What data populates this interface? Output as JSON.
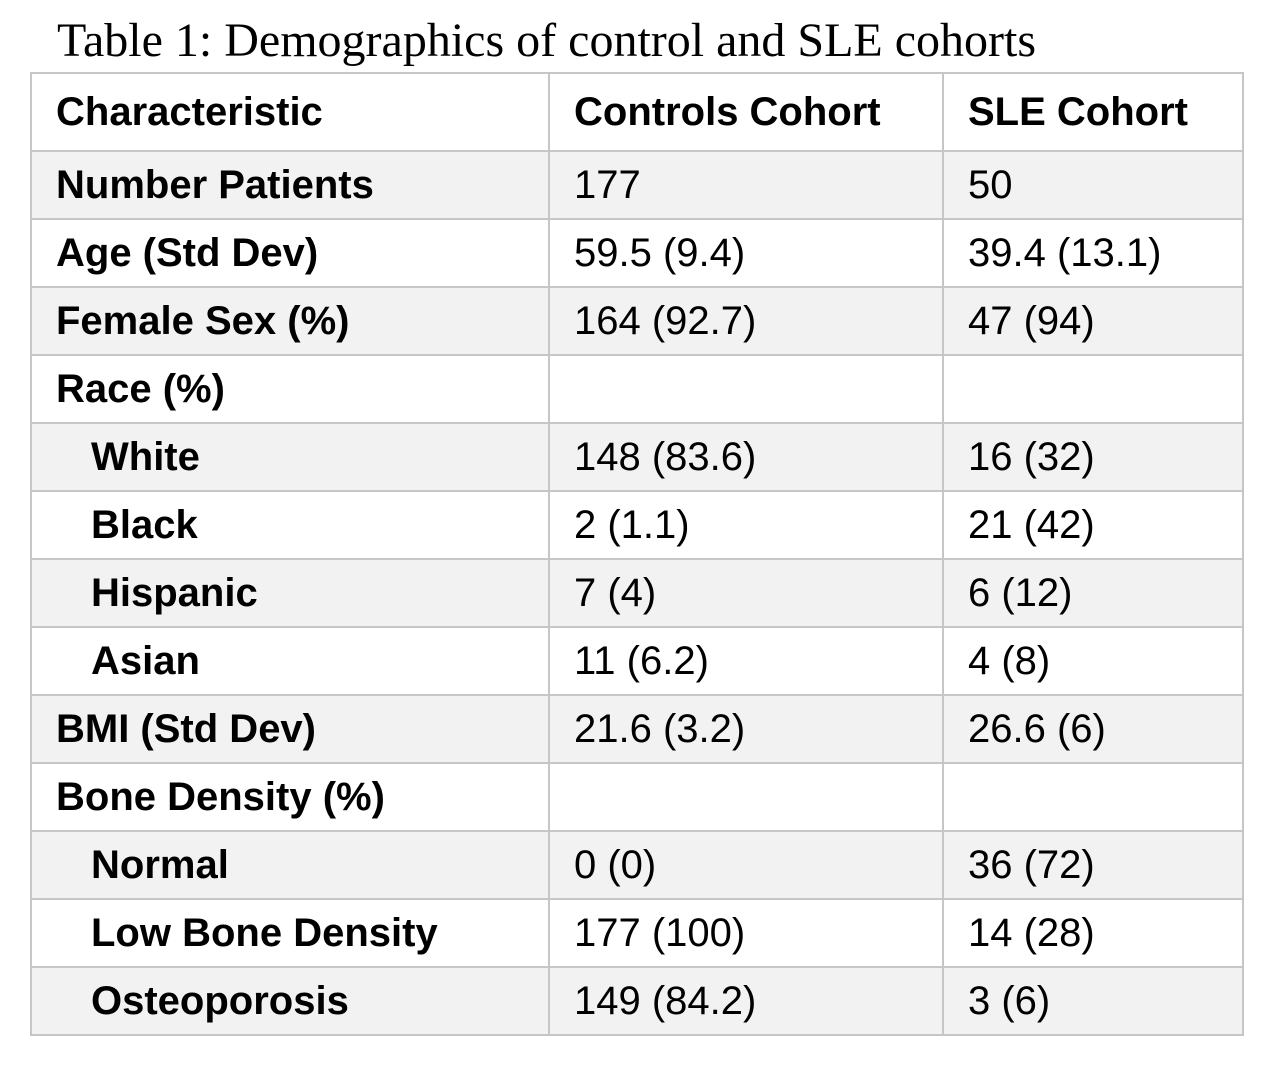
{
  "caption": "Table 1: Demographics of control and SLE cohorts",
  "table": {
    "headers": [
      "Characteristic",
      "Controls Cohort",
      "SLE Cohort"
    ],
    "rows": [
      {
        "label": "Number Patients",
        "controls": "177",
        "sle": "50"
      },
      {
        "label": "Age (Std Dev)",
        "controls": "59.5 (9.4)",
        "sle": "39.4 (13.1)"
      },
      {
        "label": "Female Sex (%)",
        "controls": "164 (92.7)",
        "sle": "47 (94)"
      },
      {
        "label": "Race (%)",
        "controls": "",
        "sle": ""
      },
      {
        "label": "White",
        "controls": "148 (83.6)",
        "sle": "16 (32)"
      },
      {
        "label": "Black",
        "controls": "2 (1.1)",
        "sle": "21 (42)"
      },
      {
        "label": "Hispanic",
        "controls": "7 (4)",
        "sle": "6 (12)"
      },
      {
        "label": "Asian",
        "controls": "11 (6.2)",
        "sle": "4 (8)"
      },
      {
        "label": "BMI (Std Dev)",
        "controls": "21.6 (3.2)",
        "sle": "26.6 (6)"
      },
      {
        "label": "Bone Density (%)",
        "controls": "",
        "sle": ""
      },
      {
        "label": "Normal",
        "controls": "0 (0)",
        "sle": "36 (72)"
      },
      {
        "label": "Low Bone Density",
        "controls": "177 (100)",
        "sle": "14 (28)"
      },
      {
        "label": "Osteoporosis",
        "controls": "149 (84.2)",
        "sle": "3 (6)"
      }
    ]
  },
  "colors": {
    "border": "#c6c6c6",
    "shaded_row": "#f2f2f2",
    "text": "#000000"
  }
}
